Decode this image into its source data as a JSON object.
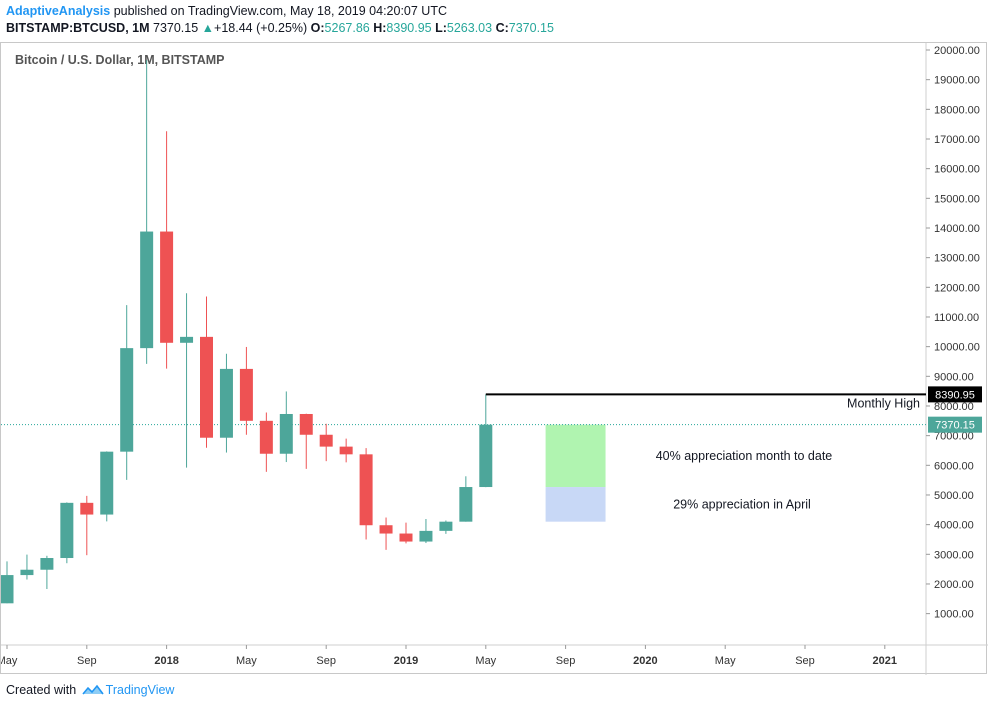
{
  "header": {
    "author": "AdaptiveAnalysis",
    "published": " published on TradingView.com, May 18, 2019 04:20:07 UTC",
    "symbol": "BITSTAMP:BTCUSD, 1M",
    "last": "7370.15",
    "change_arrow": "▲",
    "change": "+18.44 (+0.25%)",
    "o_label": "O:",
    "o_value": "5267.86",
    "h_label": "H:",
    "h_value": "8390.95",
    "l_label": "L:",
    "l_value": "5263.03",
    "c_label": "C:",
    "c_value": "7370.15"
  },
  "footer": {
    "created_with": "Created with",
    "brand": "TradingView",
    "logo_icon": "tradingview-cloud-icon"
  },
  "colors": {
    "up": "#4da69a",
    "down": "#ee5253",
    "green_box": "#b0f4b0",
    "blue_box": "#c8d8f6",
    "last_price_line": "#26a69a"
  },
  "chart_data": {
    "type": "candlestick",
    "title": "Bitcoin / U.S. Dollar, 1M, BITSTAMP",
    "x_ticks": [
      "May",
      "Sep",
      "2018",
      "May",
      "Sep",
      "2019",
      "May",
      "Sep",
      "2020",
      "May",
      "Sep",
      "2021"
    ],
    "y_ticks": [
      "1000.00",
      "2000.00",
      "3000.00",
      "4000.00",
      "5000.00",
      "6000.00",
      "7000.00",
      "8000.00",
      "9000.00",
      "10000.00",
      "11000.00",
      "12000.00",
      "13000.00",
      "14000.00",
      "15000.00",
      "16000.00",
      "17000.00",
      "18000.00",
      "19000.00",
      "20000.00"
    ],
    "ylim": [
      0,
      21000
    ],
    "candles": [
      {
        "date": "2017-05",
        "open": 1348,
        "high": 2760,
        "low": 1348,
        "close": 2300
      },
      {
        "date": "2017-06",
        "open": 2300,
        "high": 2990,
        "low": 2150,
        "close": 2480
      },
      {
        "date": "2017-07",
        "open": 2480,
        "high": 2950,
        "low": 1830,
        "close": 2875
      },
      {
        "date": "2017-08",
        "open": 2875,
        "high": 4750,
        "low": 2700,
        "close": 4735
      },
      {
        "date": "2017-09",
        "open": 4735,
        "high": 4970,
        "low": 2970,
        "close": 4340
      },
      {
        "date": "2017-10",
        "open": 4340,
        "high": 6470,
        "low": 4110,
        "close": 6460
      },
      {
        "date": "2017-11",
        "open": 6460,
        "high": 11400,
        "low": 5510,
        "close": 9950
      },
      {
        "date": "2017-12",
        "open": 9950,
        "high": 19660,
        "low": 9420,
        "close": 13880
      },
      {
        "date": "2018-01",
        "open": 13880,
        "high": 17260,
        "low": 9260,
        "close": 10130
      },
      {
        "date": "2018-02",
        "open": 10130,
        "high": 11800,
        "low": 5920,
        "close": 10330
      },
      {
        "date": "2018-03",
        "open": 10330,
        "high": 11690,
        "low": 6590,
        "close": 6930
      },
      {
        "date": "2018-04",
        "open": 6930,
        "high": 9760,
        "low": 6430,
        "close": 9250
      },
      {
        "date": "2018-05",
        "open": 9250,
        "high": 9990,
        "low": 7030,
        "close": 7500
      },
      {
        "date": "2018-06",
        "open": 7500,
        "high": 7780,
        "low": 5780,
        "close": 6390
      },
      {
        "date": "2018-07",
        "open": 6390,
        "high": 8490,
        "low": 6110,
        "close": 7730
      },
      {
        "date": "2018-08",
        "open": 7730,
        "high": 7740,
        "low": 5880,
        "close": 7030
      },
      {
        "date": "2018-09",
        "open": 7030,
        "high": 7400,
        "low": 6140,
        "close": 6630
      },
      {
        "date": "2018-10",
        "open": 6630,
        "high": 6900,
        "low": 6100,
        "close": 6370
      },
      {
        "date": "2018-11",
        "open": 6370,
        "high": 6580,
        "low": 3500,
        "close": 3980
      },
      {
        "date": "2018-12",
        "open": 3980,
        "high": 4240,
        "low": 3150,
        "close": 3700
      },
      {
        "date": "2019-01",
        "open": 3700,
        "high": 4070,
        "low": 3370,
        "close": 3430
      },
      {
        "date": "2019-02",
        "open": 3430,
        "high": 4190,
        "low": 3380,
        "close": 3790
      },
      {
        "date": "2019-03",
        "open": 3790,
        "high": 4140,
        "low": 3690,
        "close": 4100
      },
      {
        "date": "2019-04",
        "open": 4100,
        "high": 5630,
        "low": 4100,
        "close": 5267.86
      },
      {
        "date": "2019-05",
        "open": 5267.86,
        "high": 8390.95,
        "low": 5263.03,
        "close": 7370.15
      }
    ],
    "price_tags": [
      {
        "label": "8390.95",
        "value": 8390.95,
        "style": "black"
      },
      {
        "label": "7370.15",
        "value": 7370.15,
        "style": "teal"
      }
    ],
    "annotations": [
      {
        "text": "Monthly High",
        "value": 8390.95
      },
      {
        "text": "40% appreciation month to date",
        "from": 5267.86,
        "to": 7370.15
      },
      {
        "text": "29% appreciation in April",
        "from": 4100,
        "to": 5267.86
      }
    ]
  }
}
